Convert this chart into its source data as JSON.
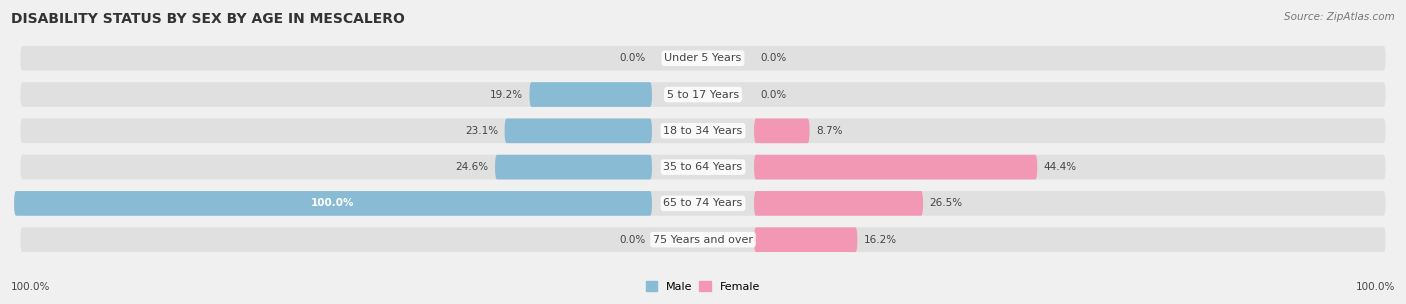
{
  "title": "DISABILITY STATUS BY SEX BY AGE IN MESCALERO",
  "source": "Source: ZipAtlas.com",
  "categories": [
    "Under 5 Years",
    "5 to 17 Years",
    "18 to 34 Years",
    "35 to 64 Years",
    "65 to 74 Years",
    "75 Years and over"
  ],
  "male_values": [
    0.0,
    19.2,
    23.1,
    24.6,
    100.0,
    0.0
  ],
  "female_values": [
    0.0,
    0.0,
    8.7,
    44.4,
    26.5,
    16.2
  ],
  "male_color": "#89bcd4",
  "female_color": "#f298b4",
  "bg_color": "#f0f0f0",
  "bar_bg_color": "#e0e0e0",
  "legend_male": "Male",
  "legend_female": "Female",
  "bottom_left_val": "100.0%",
  "bottom_right_val": "100.0%",
  "title_fontsize": 10,
  "source_fontsize": 7.5,
  "label_fontsize": 7.5,
  "cat_fontsize": 8
}
